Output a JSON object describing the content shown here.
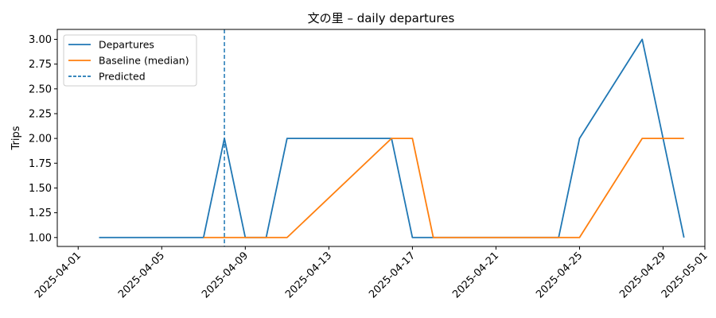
{
  "chart_data": {
    "type": "line",
    "title": "文の里 – daily departures",
    "xlabel": "",
    "ylabel": "Trips",
    "x_ticks": [
      "2025-04-01",
      "2025-04-05",
      "2025-04-09",
      "2025-04-13",
      "2025-04-17",
      "2025-04-21",
      "2025-04-25",
      "2025-04-29",
      "2025-05-01"
    ],
    "y_ticks": [
      "1.00",
      "1.25",
      "1.50",
      "1.75",
      "2.00",
      "2.25",
      "2.50",
      "2.75",
      "3.00"
    ],
    "xlim": [
      "2025-03-31",
      "2025-05-01"
    ],
    "ylim": [
      0.91,
      3.1
    ],
    "grid": false,
    "legend_position": "upper-left",
    "series": [
      {
        "name": "Departures",
        "color": "#1f77b4",
        "style": "solid",
        "points": [
          [
            "2025-04-02",
            1
          ],
          [
            "2025-04-07",
            1
          ],
          [
            "2025-04-08",
            2
          ],
          [
            "2025-04-09",
            1
          ],
          [
            "2025-04-10",
            1
          ],
          [
            "2025-04-11",
            2
          ],
          [
            "2025-04-16",
            2
          ],
          [
            "2025-04-17",
            1
          ],
          [
            "2025-04-18",
            1
          ],
          [
            "2025-04-24",
            1
          ],
          [
            "2025-04-25",
            2
          ],
          [
            "2025-04-28",
            3
          ],
          [
            "2025-04-30",
            1
          ]
        ]
      },
      {
        "name": "Baseline (median)",
        "color": "#ff7f0e",
        "style": "solid",
        "points": [
          [
            "2025-04-07",
            1
          ],
          [
            "2025-04-11",
            1
          ],
          [
            "2025-04-16",
            2
          ],
          [
            "2025-04-17",
            2
          ],
          [
            "2025-04-18",
            1
          ],
          [
            "2025-04-25",
            1
          ],
          [
            "2025-04-28",
            2
          ],
          [
            "2025-04-30",
            2
          ]
        ]
      }
    ],
    "vlines": [
      {
        "name": "Predicted",
        "x": "2025-04-08",
        "color": "#1f77b4",
        "style": "dashed"
      }
    ]
  }
}
